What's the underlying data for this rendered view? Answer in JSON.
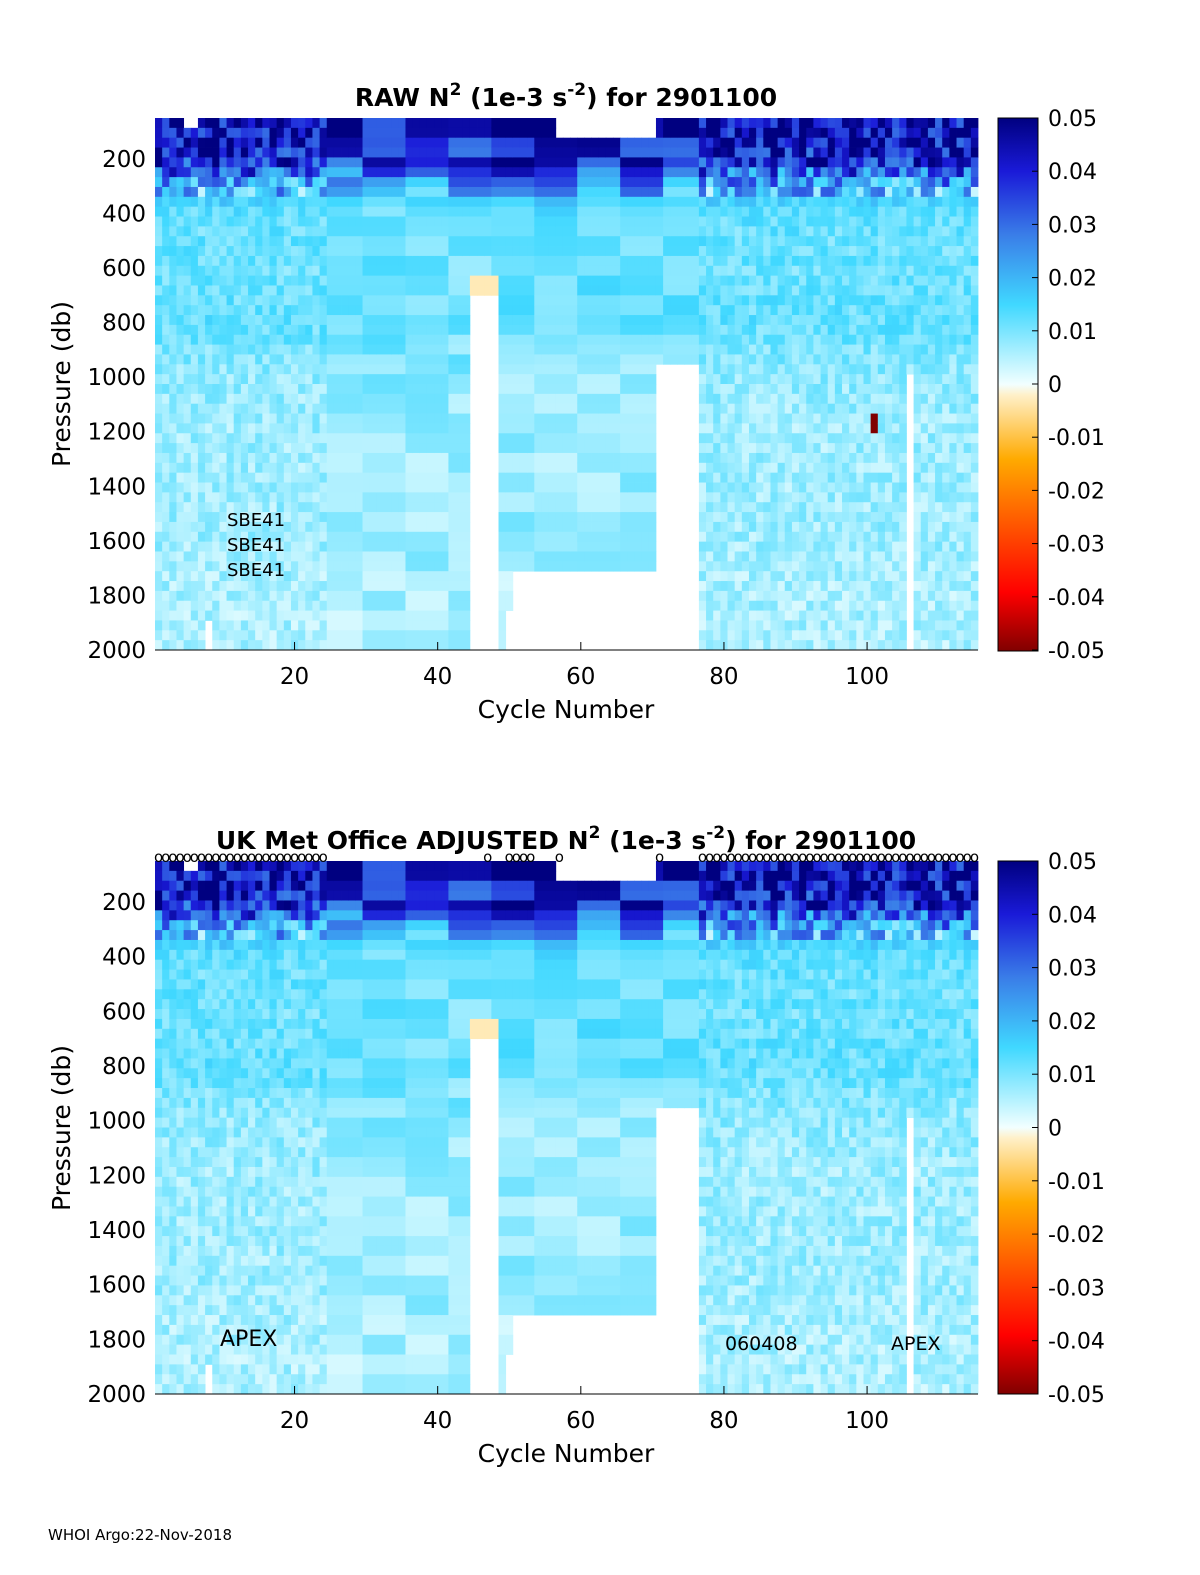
{
  "footer": "WHOI Argo:22-Nov-2018",
  "colors": {
    "missing": "#ffffff",
    "axis": "#000000"
  },
  "chart_data": [
    {
      "type": "heatmap",
      "title": "RAW N² (1e-3 s⁻²) for 2901100",
      "title_parts": {
        "pre": "RAW N",
        "sup1": "2",
        "mid": " (1e-3 s",
        "sup2": "-2",
        "post": ") for 2901100"
      },
      "xlabel": "Cycle Number",
      "ylabel": "Pressure (db)",
      "xlim": [
        1,
        115
      ],
      "ylim": [
        2000,
        50
      ],
      "xticks": [
        20,
        40,
        60,
        80,
        100
      ],
      "yticks": [
        200,
        400,
        600,
        800,
        1000,
        1200,
        1400,
        1600,
        1800,
        2000
      ],
      "colorbar": {
        "min": -0.05,
        "max": 0.05,
        "ticks": [
          "0.05",
          "0.04",
          "0.03",
          "0.02",
          "0.01",
          "0",
          "-0.01",
          "-0.02",
          "-0.03",
          "-0.04",
          "-0.05"
        ]
      },
      "annotations": [
        "SBE41",
        "SBE41",
        "SBE41"
      ],
      "qc_markers": "",
      "outlier": {
        "cycle": 101,
        "pressure": 1170,
        "value": -0.05
      },
      "estimated_profile": {
        "pressure": [
          100,
          200,
          300,
          400,
          600,
          800,
          1000,
          1200,
          1400,
          1600,
          1800,
          2000
        ],
        "typical_value": [
          0.045,
          0.042,
          0.02,
          0.012,
          0.011,
          0.012,
          0.008,
          0.007,
          0.007,
          0.007,
          0.006,
          0.006
        ]
      },
      "gaps": [
        {
          "cycles": [
            8,
            8
          ],
          "pressure": [
            1900,
            2000
          ]
        },
        {
          "cycles": [
            5,
            6
          ],
          "pressure": [
            50,
            100
          ]
        },
        {
          "cycles": [
            45,
            48
          ],
          "pressure": [
            700,
            2000
          ]
        },
        {
          "cycles": [
            50,
            51
          ],
          "pressure": [
            1870,
            2000
          ]
        },
        {
          "cycles": [
            51,
            70
          ],
          "pressure": [
            1700,
            2000
          ]
        },
        {
          "cycles": [
            57,
            70
          ],
          "pressure": [
            50,
            110
          ]
        },
        {
          "cycles": [
            71,
            76
          ],
          "pressure": [
            950,
            2000
          ]
        },
        {
          "cycles": [
            106,
            106
          ],
          "pressure": [
            1000,
            2000
          ]
        }
      ]
    },
    {
      "type": "heatmap",
      "title": "UK Met Office  ADJUSTED N² (1e-3 s⁻²) for 2901100",
      "title_parts": {
        "pre": "UK Met Office  ADJUSTED N",
        "sup1": "2",
        "mid": " (1e-3 s",
        "sup2": "-2",
        "post": ") for 2901100"
      },
      "xlabel": "Cycle Number",
      "ylabel": "Pressure (db)",
      "xlim": [
        1,
        115
      ],
      "ylim": [
        2000,
        50
      ],
      "xticks": [
        20,
        40,
        60,
        80,
        100
      ],
      "yticks": [
        200,
        400,
        600,
        800,
        1000,
        1200,
        1400,
        1600,
        1800,
        2000
      ],
      "colorbar": {
        "min": -0.05,
        "max": 0.05,
        "ticks": [
          "0.05",
          "0.04",
          "0.03",
          "0.02",
          "0.01",
          "0",
          "-0.01",
          "-0.02",
          "-0.03",
          "-0.04",
          "-0.05"
        ]
      },
      "annotations": [
        "APEX",
        "060408",
        "APEX"
      ],
      "qc_markers": "o",
      "estimated_profile": {
        "pressure": [
          100,
          200,
          300,
          400,
          600,
          800,
          1000,
          1200,
          1400,
          1600,
          1800,
          2000
        ],
        "typical_value": [
          0.045,
          0.042,
          0.02,
          0.012,
          0.011,
          0.012,
          0.008,
          0.007,
          0.007,
          0.007,
          0.006,
          0.006
        ]
      },
      "gaps": [
        {
          "cycles": [
            8,
            8
          ],
          "pressure": [
            1900,
            2000
          ]
        },
        {
          "cycles": [
            5,
            6
          ],
          "pressure": [
            50,
            100
          ]
        },
        {
          "cycles": [
            45,
            48
          ],
          "pressure": [
            700,
            2000
          ]
        },
        {
          "cycles": [
            50,
            51
          ],
          "pressure": [
            1870,
            2000
          ]
        },
        {
          "cycles": [
            51,
            70
          ],
          "pressure": [
            1700,
            2000
          ]
        },
        {
          "cycles": [
            57,
            70
          ],
          "pressure": [
            50,
            110
          ]
        },
        {
          "cycles": [
            71,
            76
          ],
          "pressure": [
            950,
            2000
          ]
        },
        {
          "cycles": [
            106,
            106
          ],
          "pressure": [
            1000,
            2000
          ]
        }
      ]
    }
  ]
}
